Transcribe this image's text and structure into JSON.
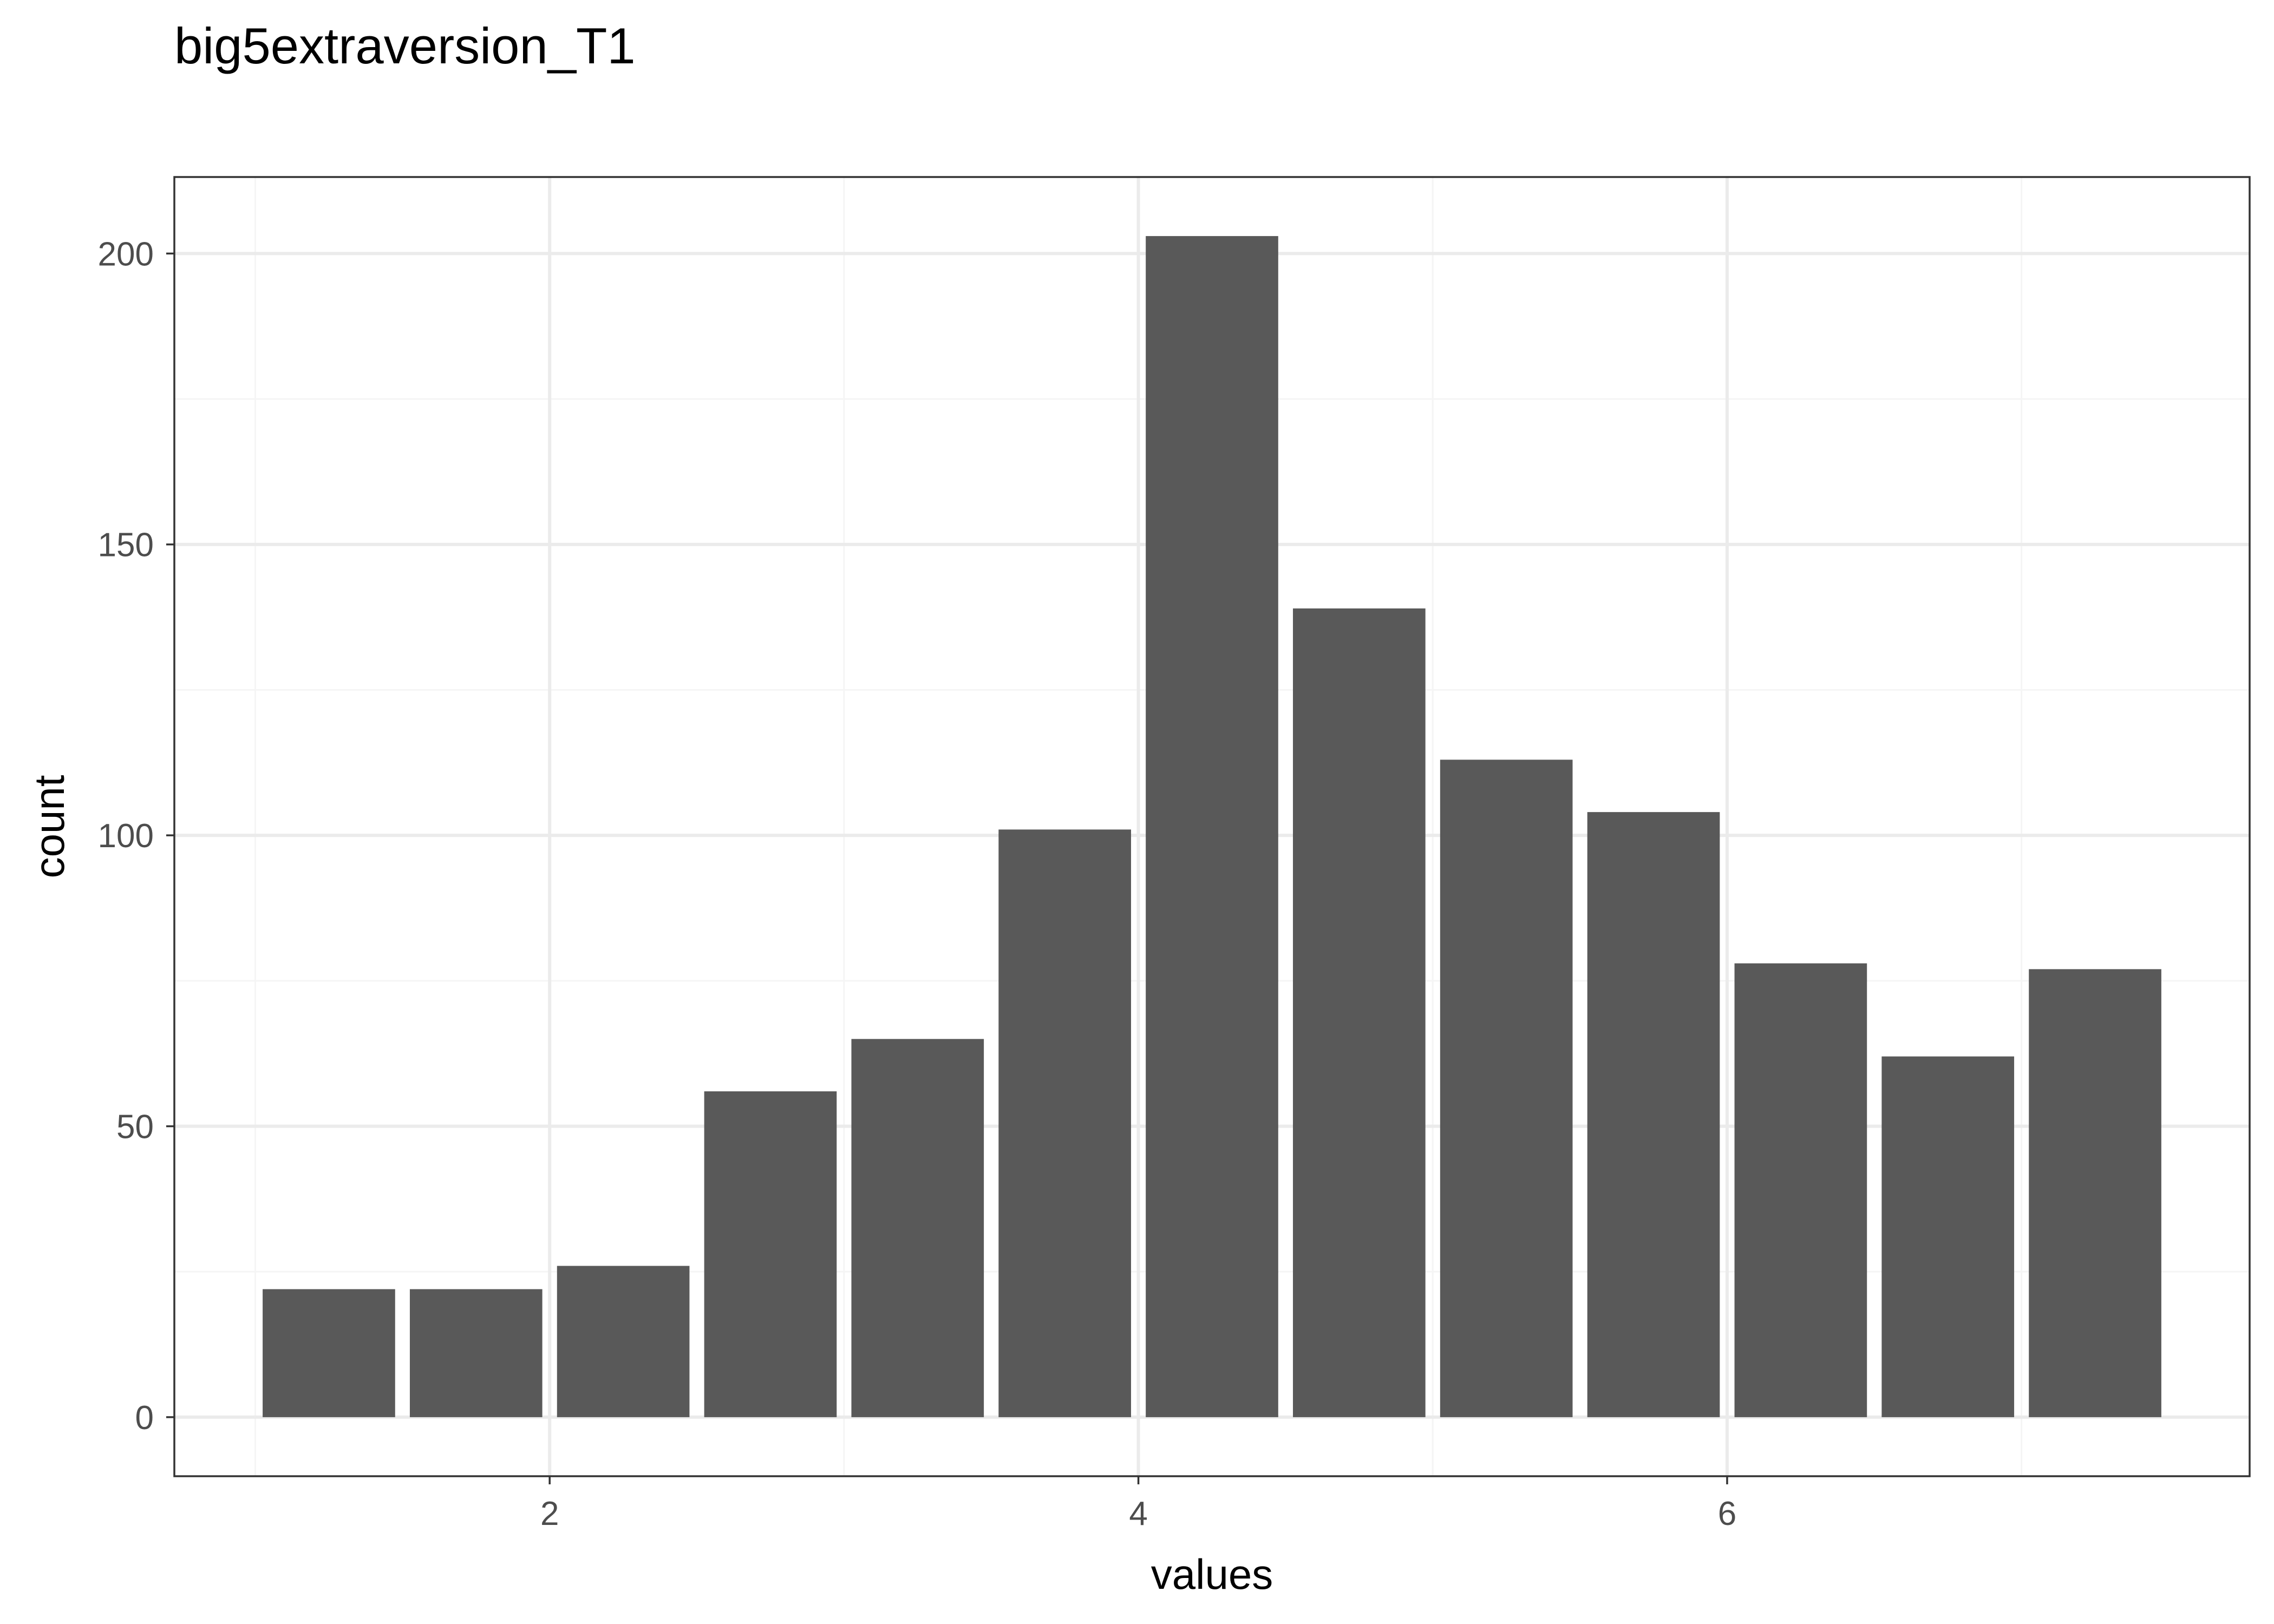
{
  "chart_data": {
    "type": "bar",
    "title": "big5extraversion_T1",
    "xlabel": "values",
    "ylabel": "count",
    "x": [
      1.25,
      1.75,
      2.25,
      2.75,
      3.25,
      3.75,
      4.25,
      4.75,
      5.25,
      5.75,
      6.25,
      6.75,
      7.25
    ],
    "values": [
      22,
      22,
      26,
      56,
      65,
      101,
      203,
      139,
      113,
      104,
      78,
      62,
      77
    ],
    "bar_width": 0.45,
    "xlim": [
      0.725,
      7.775
    ],
    "ylim": [
      -10.15,
      213.15
    ],
    "x_ticks": [
      2,
      4,
      6
    ],
    "x_tick_labels": [
      "2",
      "4",
      "6"
    ],
    "x_minor_ticks": [
      1,
      3,
      5,
      7
    ],
    "y_ticks": [
      0,
      50,
      100,
      150,
      200
    ],
    "y_tick_labels": [
      "0",
      "50",
      "100",
      "150",
      "200"
    ],
    "y_minor_ticks": [
      25,
      75,
      125,
      175
    ],
    "grid": true,
    "legend": "none",
    "colors": {
      "bar": "#595959",
      "panel_border": "#333333",
      "grid_major": "#ebebeb",
      "grid_minor": "#f5f5f5",
      "tick_text": "#4d4d4d"
    }
  }
}
